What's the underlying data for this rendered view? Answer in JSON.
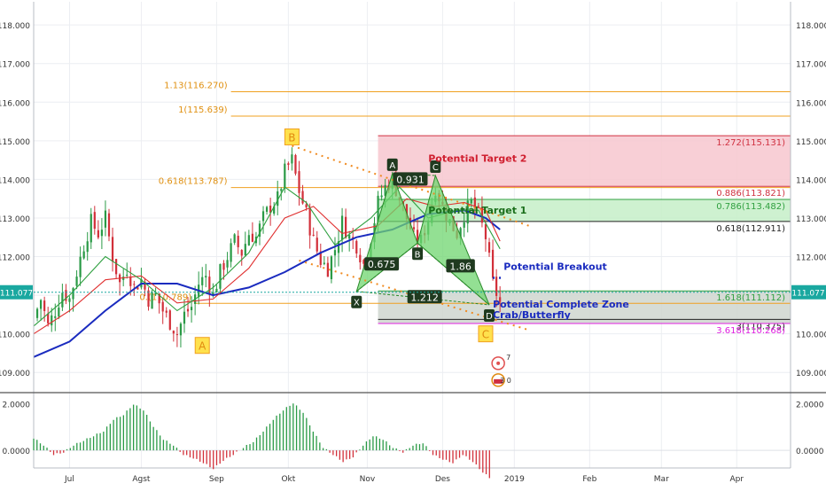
{
  "chart_data": {
    "type": "candlestick",
    "price_axis": {
      "ticks": [
        "118.000",
        "117.000",
        "116.000",
        "115.000",
        "114.000",
        "113.000",
        "112.000",
        "111.000",
        "110.000",
        "109.000"
      ],
      "tick_values": [
        118,
        117,
        116,
        115,
        114,
        113,
        112,
        111,
        110,
        109
      ],
      "range": [
        108.5,
        118.6
      ]
    },
    "x_axis": {
      "labels": [
        "Jul",
        "Agst",
        "Sep",
        "Okt",
        "Nov",
        "Des",
        "2019",
        "Feb",
        "Mar",
        "Apr"
      ],
      "label_index": [
        0,
        20,
        41,
        61,
        83,
        104,
        124,
        145,
        165,
        186
      ],
      "range_index": [
        -10,
        201
      ]
    },
    "current_price": {
      "label": "111.077",
      "value": 111.077
    },
    "close_path": [
      [
        -10,
        110.4
      ],
      [
        -8,
        110.9
      ],
      [
        -6,
        110.2
      ],
      [
        -4,
        110.6
      ],
      [
        -2,
        111.1
      ],
      [
        0,
        110.9
      ],
      [
        2,
        111.6
      ],
      [
        4,
        112.3
      ],
      [
        6,
        112.9
      ],
      [
        8,
        112.6
      ],
      [
        10,
        113.0
      ],
      [
        12,
        112.0
      ],
      [
        14,
        111.3
      ],
      [
        16,
        111.7
      ],
      [
        18,
        111.2
      ],
      [
        20,
        111.4
      ],
      [
        22,
        110.9
      ],
      [
        24,
        111.0
      ],
      [
        26,
        110.6
      ],
      [
        28,
        110.3
      ],
      [
        30,
        110.0
      ],
      [
        32,
        110.5
      ],
      [
        34,
        110.7
      ],
      [
        36,
        111.3
      ],
      [
        38,
        111.5
      ],
      [
        40,
        111.0
      ],
      [
        42,
        111.6
      ],
      [
        44,
        112.0
      ],
      [
        46,
        112.4
      ],
      [
        48,
        112.1
      ],
      [
        50,
        112.6
      ],
      [
        52,
        112.5
      ],
      [
        54,
        113.0
      ],
      [
        56,
        113.3
      ],
      [
        58,
        113.5
      ],
      [
        60,
        114.2
      ],
      [
        62,
        114.5
      ],
      [
        64,
        113.7
      ],
      [
        66,
        113.1
      ],
      [
        68,
        112.4
      ],
      [
        70,
        111.9
      ],
      [
        72,
        111.7
      ],
      [
        74,
        112.2
      ],
      [
        76,
        112.9
      ],
      [
        78,
        112.5
      ],
      [
        80,
        112.3
      ],
      [
        82,
        111.8
      ],
      [
        84,
        112.5
      ],
      [
        86,
        113.4
      ],
      [
        88,
        113.8
      ],
      [
        90,
        114.0
      ],
      [
        92,
        113.5
      ],
      [
        94,
        113.0
      ],
      [
        96,
        112.5
      ],
      [
        98,
        112.4
      ],
      [
        100,
        113.0
      ],
      [
        102,
        113.8
      ],
      [
        104,
        113.3
      ],
      [
        106,
        112.9
      ],
      [
        108,
        112.6
      ],
      [
        110,
        113.1
      ],
      [
        112,
        113.4
      ],
      [
        114,
        113.1
      ],
      [
        116,
        112.5
      ],
      [
        118,
        111.3
      ],
      [
        120,
        110.8
      ]
    ],
    "moving_averages": [
      {
        "color": "#1a2bbf",
        "path": [
          [
            -10,
            109.4
          ],
          [
            0,
            109.8
          ],
          [
            10,
            110.6
          ],
          [
            20,
            111.3
          ],
          [
            30,
            111.3
          ],
          [
            40,
            111.0
          ],
          [
            50,
            111.2
          ],
          [
            60,
            111.6
          ],
          [
            70,
            112.1
          ],
          [
            80,
            112.5
          ],
          [
            90,
            112.7
          ],
          [
            100,
            113.1
          ],
          [
            110,
            113.2
          ],
          [
            116,
            113.0
          ],
          [
            120,
            112.7
          ]
        ]
      },
      {
        "color": "#e03030",
        "path": [
          [
            -10,
            110.0
          ],
          [
            0,
            110.6
          ],
          [
            10,
            111.4
          ],
          [
            20,
            111.5
          ],
          [
            30,
            110.8
          ],
          [
            40,
            110.9
          ],
          [
            50,
            111.7
          ],
          [
            60,
            113.0
          ],
          [
            68,
            113.3
          ],
          [
            76,
            112.6
          ],
          [
            86,
            112.8
          ],
          [
            94,
            113.5
          ],
          [
            102,
            113.3
          ],
          [
            110,
            113.4
          ],
          [
            116,
            113.2
          ],
          [
            120,
            112.4
          ]
        ]
      },
      {
        "color": "#2fa040",
        "path": [
          [
            -10,
            110.2
          ],
          [
            0,
            111.0
          ],
          [
            10,
            112.0
          ],
          [
            20,
            111.4
          ],
          [
            30,
            110.6
          ],
          [
            40,
            111.2
          ],
          [
            50,
            112.1
          ],
          [
            60,
            113.8
          ],
          [
            66,
            113.4
          ],
          [
            74,
            112.3
          ],
          [
            84,
            113.0
          ],
          [
            92,
            113.8
          ],
          [
            100,
            113.0
          ],
          [
            108,
            113.2
          ],
          [
            114,
            113.2
          ],
          [
            120,
            112.2
          ]
        ]
      }
    ],
    "pattern_points": [
      {
        "label": "X",
        "x": 80,
        "y": 111.1
      },
      {
        "label": "A",
        "x": 90,
        "y": 114.15
      },
      {
        "label": "B",
        "x": 97,
        "y": 112.35
      },
      {
        "label": "C",
        "x": 102,
        "y": 114.1
      },
      {
        "label": "D",
        "x": 117,
        "y": 110.75
      }
    ],
    "ratios": [
      {
        "label": "0.931",
        "x": 95,
        "y": 114.0
      },
      {
        "label": "0.675",
        "x": 87,
        "y": 111.8
      },
      {
        "label": "1.86",
        "x": 109,
        "y": 111.75
      },
      {
        "label": "1.212",
        "x": 99,
        "y": 110.95
      }
    ],
    "abc_points": [
      {
        "label": "A",
        "x": 37,
        "y": 109.7
      },
      {
        "label": "B",
        "x": 62,
        "y": 115.1
      },
      {
        "label": "C",
        "x": 116,
        "y": 110.0
      }
    ],
    "fib_levels_left": [
      {
        "label": "1.13(116.270)",
        "value": 116.27,
        "x_start": 45
      },
      {
        "label": "1(115.639)",
        "value": 115.639,
        "x_start": 45
      },
      {
        "label": "0.618(113.787)",
        "value": 113.787,
        "x_start": 45
      },
      {
        "label": "0.(110.789)",
        "value": 110.789,
        "x_start": 35
      }
    ],
    "fib_levels_right": [
      {
        "label": "1.272(115.131)",
        "value": 115.131,
        "color": "#d03040"
      },
      {
        "label": "0.886(113.821)",
        "value": 113.821,
        "color": "#d03040"
      },
      {
        "label": "0.786(113.482)",
        "value": 113.482,
        "color": "#30a040"
      },
      {
        "label": "0.618(112.911)",
        "value": 112.911,
        "color": "#222222"
      },
      {
        "label": "1.618(111.112)",
        "value": 111.112,
        "color": "#30a040"
      },
      {
        "label": "3(110.375)",
        "value": 110.375,
        "color": "#222222"
      },
      {
        "label": "3.618(110.268)",
        "value": 110.268,
        "color": "#e020e0"
      }
    ],
    "zones": [
      {
        "label": "Potential Target 2",
        "top": 115.131,
        "bottom": 113.821,
        "color": "#f7c7cf",
        "text_color": "#d02030",
        "x_label": 100,
        "y_label": 114.55
      },
      {
        "label": "Potential Target 1",
        "top": 113.482,
        "bottom": 112.911,
        "color": "#c6efc8",
        "text_color": "#1a6e1a",
        "x_label": 100,
        "y_label": 113.2
      },
      {
        "label": "Potential Complete Zone",
        "top": 111.112,
        "bottom": 110.268,
        "color": "#cfd6cf",
        "text_color": "#1a2bbf",
        "x_label": 118,
        "y_label": 110.77
      }
    ],
    "annotations": [
      {
        "label": "Potential Breakout",
        "color": "#1a2bbf",
        "x": 121,
        "y": 111.75
      },
      {
        "label": "Crab/Butterfly",
        "color": "#1a2bbf",
        "x": 118,
        "y": 110.5
      }
    ],
    "event_badge": {
      "top": "7",
      "bottom": "3 0"
    },
    "oscillator": {
      "ticks": [
        "2.0000",
        "0.0000"
      ],
      "range": [
        -0.75,
        2.35
      ],
      "histogram": [
        0.5,
        0.2,
        -0.2,
        -0.1,
        0.2,
        0.4,
        0.6,
        0.8,
        1.3,
        1.5,
        1.95,
        1.7,
        1.0,
        0.45,
        0.2,
        -0.2,
        -0.35,
        -0.55,
        -0.8,
        -0.45,
        -0.2,
        0.1,
        0.35,
        0.8,
        1.3,
        1.7,
        2.0,
        1.6,
        0.8,
        0.1,
        -0.2,
        -0.5,
        -0.3,
        0.2,
        0.6,
        0.45,
        0.1,
        -0.1,
        0.2,
        0.3,
        -0.2,
        -0.4,
        -0.55,
        -0.2,
        -0.5,
        -0.95,
        -1.3
      ]
    }
  }
}
